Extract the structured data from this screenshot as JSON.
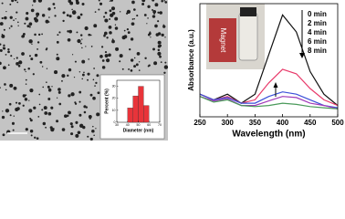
{
  "chart_data": [
    {
      "type": "histogram",
      "x_label": "Diameter (nm)",
      "y_label": "Percent (%)",
      "bins": [
        40,
        45,
        50,
        55,
        60
      ],
      "counts": [
        12,
        22,
        30,
        14
      ],
      "color": "#e8343a",
      "xlim": [
        30,
        70
      ],
      "xticks": [
        30,
        40,
        50,
        60,
        70
      ],
      "ylim": [
        0,
        35
      ],
      "yticks": [
        0,
        10,
        20,
        30
      ]
    },
    {
      "type": "line",
      "x_label": "Wavelength (nm)",
      "y_label": "Absorbance (a.u.)",
      "annotation": "Magnet",
      "x": [
        250,
        275,
        300,
        325,
        350,
        375,
        400,
        425,
        450,
        475,
        500
      ],
      "series": [
        {
          "name": "0 min",
          "color": "#111111",
          "values": [
            0.2,
            0.15,
            0.2,
            0.12,
            0.2,
            0.55,
            0.9,
            0.75,
            0.4,
            0.2,
            0.1
          ]
        },
        {
          "name": "2 min",
          "color": "#e83a6a",
          "values": [
            0.2,
            0.15,
            0.18,
            0.12,
            0.15,
            0.3,
            0.42,
            0.38,
            0.25,
            0.15,
            0.1
          ]
        },
        {
          "name": "4 min",
          "color": "#3a4fd8",
          "values": [
            0.2,
            0.15,
            0.17,
            0.12,
            0.12,
            0.18,
            0.22,
            0.2,
            0.15,
            0.1,
            0.08
          ]
        },
        {
          "name": "6 min",
          "color": "#a03ab8",
          "values": [
            0.18,
            0.14,
            0.16,
            0.1,
            0.1,
            0.14,
            0.18,
            0.17,
            0.12,
            0.1,
            0.07
          ]
        },
        {
          "name": "8 min",
          "color": "#4a9a5a",
          "values": [
            0.18,
            0.13,
            0.15,
            0.1,
            0.09,
            0.1,
            0.12,
            0.11,
            0.09,
            0.08,
            0.07
          ]
        }
      ],
      "xlim": [
        250,
        500
      ],
      "xticks": [
        250,
        300,
        350,
        400,
        450,
        500
      ],
      "ylim": [
        0,
        1
      ]
    }
  ]
}
